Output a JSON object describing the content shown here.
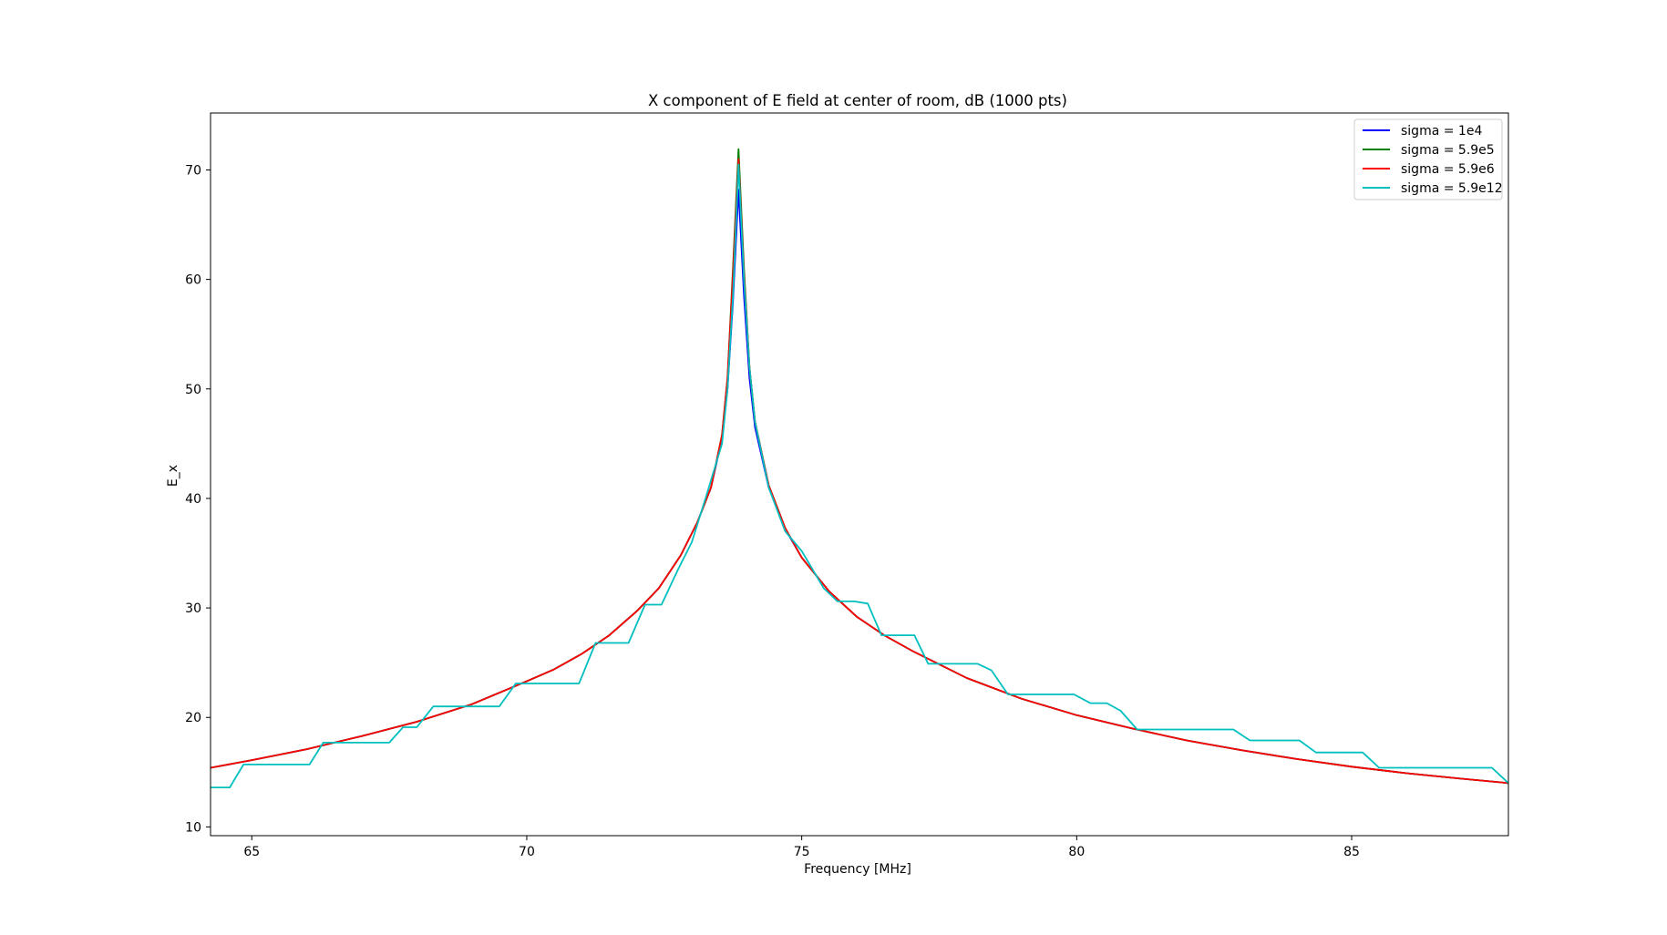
{
  "chart_data": {
    "type": "line",
    "title": "X component of E field at center of room, dB (1000 pts)",
    "xlabel": "Frequency [MHz]",
    "ylabel": "E_x",
    "xlim": [
      64.25,
      87.85
    ],
    "ylim": [
      9.2,
      75.2
    ],
    "xticks": [
      65,
      70,
      75,
      80,
      85
    ],
    "yticks": [
      10,
      20,
      30,
      40,
      50,
      60,
      70
    ],
    "grid": false,
    "legend_position": "top-right",
    "series": [
      {
        "name": "sigma = 1e4",
        "color": "#0000ff",
        "points": [
          [
            64.25,
            15.4
          ],
          [
            65,
            16.1
          ],
          [
            66,
            17.1
          ],
          [
            67,
            18.3
          ],
          [
            68,
            19.6
          ],
          [
            69,
            21.2
          ],
          [
            70,
            23.3
          ],
          [
            70.5,
            24.4
          ],
          [
            71,
            25.8
          ],
          [
            71.5,
            27.5
          ],
          [
            72,
            29.7
          ],
          [
            72.4,
            31.8
          ],
          [
            72.8,
            34.8
          ],
          [
            73.1,
            37.8
          ],
          [
            73.35,
            41.0
          ],
          [
            73.55,
            45.5
          ],
          [
            73.65,
            50.0
          ],
          [
            73.75,
            58.0
          ],
          [
            73.85,
            68.2
          ],
          [
            73.95,
            58.5
          ],
          [
            74.05,
            51.0
          ],
          [
            74.15,
            46.5
          ],
          [
            74.4,
            41.0
          ],
          [
            74.7,
            37.2
          ],
          [
            75,
            34.6
          ],
          [
            75.5,
            31.5
          ],
          [
            76,
            29.2
          ],
          [
            76.5,
            27.5
          ],
          [
            77,
            26.1
          ],
          [
            78,
            23.6
          ],
          [
            79,
            21.7
          ],
          [
            80,
            20.2
          ],
          [
            81,
            19.0
          ],
          [
            82,
            17.9
          ],
          [
            83,
            17.0
          ],
          [
            84,
            16.2
          ],
          [
            85,
            15.5
          ],
          [
            86,
            14.9
          ],
          [
            87,
            14.4
          ],
          [
            87.85,
            14.0
          ]
        ]
      },
      {
        "name": "sigma = 5.9e5",
        "color": "#008000",
        "points": [
          [
            64.25,
            15.4
          ],
          [
            65,
            16.1
          ],
          [
            66,
            17.1
          ],
          [
            67,
            18.3
          ],
          [
            68,
            19.6
          ],
          [
            69,
            21.2
          ],
          [
            70,
            23.3
          ],
          [
            70.5,
            24.4
          ],
          [
            71,
            25.8
          ],
          [
            71.5,
            27.5
          ],
          [
            72,
            29.7
          ],
          [
            72.4,
            31.8
          ],
          [
            72.8,
            34.8
          ],
          [
            73.1,
            37.8
          ],
          [
            73.35,
            41.0
          ],
          [
            73.55,
            45.8
          ],
          [
            73.65,
            51.0
          ],
          [
            73.75,
            61.0
          ],
          [
            73.85,
            71.9
          ],
          [
            73.95,
            61.0
          ],
          [
            74.05,
            52.0
          ],
          [
            74.15,
            47.0
          ],
          [
            74.4,
            41.2
          ],
          [
            74.7,
            37.3
          ],
          [
            75,
            34.6
          ],
          [
            75.5,
            31.5
          ],
          [
            76,
            29.2
          ],
          [
            76.5,
            27.5
          ],
          [
            77,
            26.1
          ],
          [
            78,
            23.6
          ],
          [
            79,
            21.7
          ],
          [
            80,
            20.2
          ],
          [
            81,
            19.0
          ],
          [
            82,
            17.9
          ],
          [
            83,
            17.0
          ],
          [
            84,
            16.2
          ],
          [
            85,
            15.5
          ],
          [
            86,
            14.9
          ],
          [
            87,
            14.4
          ],
          [
            87.85,
            14.0
          ]
        ]
      },
      {
        "name": "sigma = 5.9e6",
        "color": "#ff0000",
        "points": [
          [
            64.25,
            15.4
          ],
          [
            65,
            16.1
          ],
          [
            66,
            17.1
          ],
          [
            67,
            18.3
          ],
          [
            68,
            19.6
          ],
          [
            69,
            21.2
          ],
          [
            70,
            23.3
          ],
          [
            70.5,
            24.4
          ],
          [
            71,
            25.8
          ],
          [
            71.5,
            27.5
          ],
          [
            72,
            29.7
          ],
          [
            72.4,
            31.8
          ],
          [
            72.8,
            34.8
          ],
          [
            73.1,
            37.8
          ],
          [
            73.35,
            41.0
          ],
          [
            73.55,
            45.8
          ],
          [
            73.65,
            51.0
          ],
          [
            73.75,
            60.5
          ],
          [
            73.85,
            71.0
          ],
          [
            73.95,
            60.5
          ],
          [
            74.05,
            52.0
          ],
          [
            74.15,
            47.0
          ],
          [
            74.4,
            41.2
          ],
          [
            74.7,
            37.3
          ],
          [
            75,
            34.6
          ],
          [
            75.5,
            31.5
          ],
          [
            76,
            29.2
          ],
          [
            76.5,
            27.5
          ],
          [
            77,
            26.1
          ],
          [
            78,
            23.6
          ],
          [
            79,
            21.7
          ],
          [
            80,
            20.2
          ],
          [
            81,
            19.0
          ],
          [
            82,
            17.9
          ],
          [
            83,
            17.0
          ],
          [
            84,
            16.2
          ],
          [
            85,
            15.5
          ],
          [
            86,
            14.9
          ],
          [
            87,
            14.4
          ],
          [
            87.85,
            14.0
          ]
        ]
      },
      {
        "name": "sigma = 5.9e12",
        "color": "#00bfbf",
        "points": [
          [
            64.25,
            13.6
          ],
          [
            64.6,
            13.6
          ],
          [
            64.85,
            15.7
          ],
          [
            66.05,
            15.7
          ],
          [
            66.3,
            17.7
          ],
          [
            67.5,
            17.7
          ],
          [
            67.75,
            19.1
          ],
          [
            68.0,
            19.1
          ],
          [
            68.3,
            21.0
          ],
          [
            69.5,
            21.0
          ],
          [
            69.8,
            23.1
          ],
          [
            70.95,
            23.1
          ],
          [
            71.25,
            26.8
          ],
          [
            71.85,
            26.8
          ],
          [
            72.15,
            30.3
          ],
          [
            72.45,
            30.3
          ],
          [
            72.75,
            33.5
          ],
          [
            73.0,
            36.0
          ],
          [
            73.25,
            40.0
          ],
          [
            73.55,
            45.0
          ],
          [
            73.65,
            50.0
          ],
          [
            73.75,
            58.5
          ],
          [
            73.85,
            70.5
          ],
          [
            73.95,
            60.0
          ],
          [
            74.05,
            52.0
          ],
          [
            74.15,
            47.0
          ],
          [
            74.4,
            41.0
          ],
          [
            74.7,
            37.0
          ],
          [
            75,
            35.2
          ],
          [
            75.4,
            31.8
          ],
          [
            75.65,
            30.6
          ],
          [
            75.95,
            30.6
          ],
          [
            76.2,
            30.4
          ],
          [
            76.45,
            27.5
          ],
          [
            77.05,
            27.5
          ],
          [
            77.3,
            24.9
          ],
          [
            78.2,
            24.9
          ],
          [
            78.45,
            24.3
          ],
          [
            78.75,
            22.1
          ],
          [
            79.95,
            22.1
          ],
          [
            80.25,
            21.3
          ],
          [
            80.55,
            21.3
          ],
          [
            80.8,
            20.6
          ],
          [
            81.1,
            18.9
          ],
          [
            82.85,
            18.9
          ],
          [
            83.15,
            17.9
          ],
          [
            84.05,
            17.9
          ],
          [
            84.35,
            16.8
          ],
          [
            85.2,
            16.8
          ],
          [
            85.5,
            15.4
          ],
          [
            87.55,
            15.4
          ],
          [
            87.85,
            14.0
          ]
        ]
      }
    ]
  }
}
